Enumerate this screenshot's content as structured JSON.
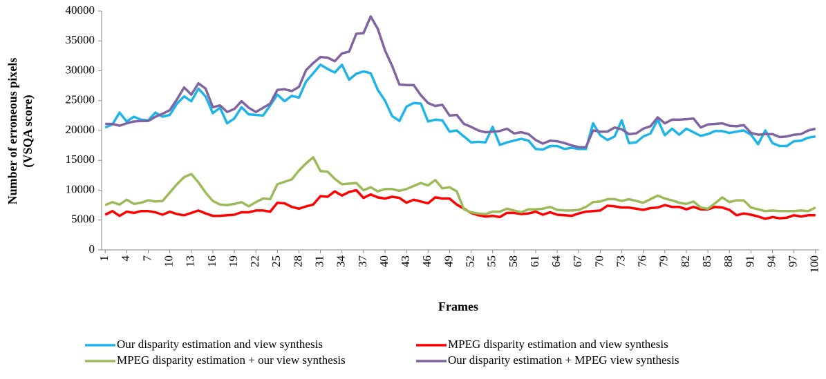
{
  "chart_data": {
    "type": "line",
    "xlabel": "Frames",
    "ylabel": [
      "Number of erroneous pixels",
      "(VSQA score)"
    ],
    "x": [
      1,
      2,
      3,
      4,
      5,
      6,
      7,
      8,
      9,
      10,
      11,
      12,
      13,
      14,
      15,
      16,
      17,
      18,
      19,
      20,
      21,
      22,
      23,
      24,
      25,
      26,
      27,
      28,
      29,
      30,
      31,
      32,
      33,
      34,
      35,
      36,
      37,
      38,
      39,
      40,
      41,
      42,
      43,
      44,
      45,
      46,
      47,
      48,
      49,
      50,
      51,
      52,
      53,
      54,
      55,
      56,
      57,
      58,
      59,
      60,
      61,
      62,
      63,
      64,
      65,
      66,
      67,
      68,
      69,
      70,
      71,
      72,
      73,
      74,
      75,
      76,
      77,
      78,
      79,
      80,
      81,
      82,
      83,
      84,
      85,
      86,
      87,
      88,
      89,
      90,
      91,
      92,
      93,
      94,
      95,
      96,
      97,
      98,
      99,
      100
    ],
    "xlim": [
      0.5,
      100.5
    ],
    "xticks": [
      1,
      4,
      7,
      10,
      13,
      16,
      19,
      22,
      25,
      28,
      31,
      34,
      37,
      40,
      43,
      46,
      49,
      52,
      55,
      58,
      61,
      64,
      67,
      70,
      73,
      76,
      79,
      82,
      85,
      88,
      91,
      94,
      97,
      100
    ],
    "ylim": [
      0,
      40000
    ],
    "yticks": [
      0,
      5000,
      10000,
      15000,
      20000,
      25000,
      30000,
      35000,
      40000
    ],
    "grid": false,
    "legend": "bottom",
    "series": [
      {
        "name": "Our disparity estimation and view synthesis",
        "color": "#1eb4e8",
        "values": [
          20500,
          21000,
          23000,
          21500,
          22300,
          21800,
          21700,
          23000,
          22300,
          22600,
          24500,
          25700,
          24900,
          27000,
          25700,
          22900,
          23800,
          21200,
          22000,
          23900,
          22700,
          22600,
          22500,
          24200,
          26000,
          24900,
          25800,
          25500,
          28200,
          29600,
          31000,
          30300,
          29700,
          31000,
          28500,
          29500,
          29900,
          29600,
          26800,
          25000,
          22400,
          21600,
          24000,
          24600,
          24500,
          21500,
          21800,
          21700,
          19800,
          20000,
          19000,
          18000,
          18100,
          18000,
          20600,
          17600,
          18000,
          18300,
          18600,
          18300,
          16900,
          16800,
          17400,
          17400,
          16900,
          17100,
          16900,
          16900,
          21200,
          19200,
          18400,
          19000,
          21700,
          17900,
          18000,
          19000,
          19500,
          21800,
          19200,
          20300,
          19300,
          20300,
          19700,
          19100,
          19400,
          19900,
          19900,
          19600,
          19800,
          20000,
          19300,
          17700,
          20000,
          17900,
          17400,
          17400,
          18200,
          18300,
          18800,
          19000
        ]
      },
      {
        "name": "MPEG disparity estimation and view synthesis",
        "color": "#ff0000",
        "values": [
          5900,
          6500,
          5700,
          6400,
          6200,
          6500,
          6500,
          6300,
          5900,
          6400,
          6000,
          5800,
          6200,
          6600,
          6100,
          5700,
          5700,
          5800,
          5900,
          6300,
          6300,
          6600,
          6600,
          6400,
          7900,
          7800,
          7200,
          6900,
          7300,
          7600,
          9000,
          8900,
          9800,
          9100,
          9700,
          10000,
          8700,
          9300,
          8800,
          8600,
          8900,
          8700,
          7900,
          8400,
          8100,
          7800,
          8800,
          8600,
          8600,
          7600,
          6900,
          6200,
          5800,
          5600,
          5700,
          5500,
          6200,
          6200,
          6000,
          6100,
          6400,
          5900,
          6300,
          5900,
          5800,
          5700,
          6100,
          6400,
          6500,
          6600,
          7400,
          7300,
          7100,
          7100,
          6900,
          6700,
          7000,
          7100,
          7500,
          7200,
          7200,
          6800,
          7200,
          6800,
          6800,
          7200,
          7100,
          6700,
          5800,
          6100,
          5900,
          5600,
          5200,
          5500,
          5300,
          5400,
          5800,
          5600,
          5800,
          5800
        ]
      },
      {
        "name": "MPEG disparity estimation + our view synthesis",
        "color": "#9bbb59",
        "values": [
          7500,
          8000,
          7600,
          8400,
          7700,
          7900,
          8300,
          8100,
          8200,
          9600,
          11000,
          12200,
          12700,
          11300,
          9600,
          8200,
          7600,
          7500,
          7700,
          8000,
          7300,
          8000,
          8600,
          8500,
          11000,
          11400,
          11800,
          13300,
          14500,
          15500,
          13200,
          13100,
          11900,
          11000,
          11100,
          11200,
          10000,
          10500,
          9800,
          10200,
          10200,
          9900,
          10200,
          10700,
          11200,
          10800,
          11700,
          10300,
          10500,
          9800,
          6800,
          6300,
          6100,
          6000,
          6400,
          6400,
          6900,
          6600,
          6300,
          6800,
          6800,
          6900,
          7200,
          6700,
          6600,
          6600,
          6700,
          7200,
          8000,
          8100,
          8500,
          8500,
          8200,
          8500,
          8200,
          7900,
          8500,
          9100,
          8600,
          8300,
          7900,
          7700,
          8100,
          7100,
          6900,
          7800,
          8800,
          8000,
          8300,
          8300,
          7100,
          6800,
          6500,
          6600,
          6500,
          6500,
          6500,
          6600,
          6500,
          7100
        ]
      },
      {
        "name": "Our disparity estimation + MPEG view synthesis",
        "color": "#8064a2",
        "values": [
          21100,
          21100,
          20800,
          21200,
          21500,
          21600,
          21600,
          22300,
          22800,
          23400,
          25200,
          27200,
          26000,
          27900,
          27000,
          23900,
          24200,
          23100,
          23600,
          24900,
          23800,
          23100,
          23800,
          24500,
          26800,
          26900,
          26600,
          27300,
          30100,
          31300,
          32300,
          32200,
          31600,
          32900,
          33200,
          36200,
          36300,
          39100,
          37000,
          33400,
          30800,
          27700,
          27600,
          27600,
          25900,
          24600,
          24100,
          24300,
          22500,
          22600,
          21100,
          20600,
          20000,
          19700,
          19800,
          19900,
          20300,
          19500,
          19700,
          19400,
          18400,
          17800,
          18300,
          18200,
          17900,
          17500,
          17200,
          17200,
          20000,
          19800,
          19800,
          20500,
          20200,
          19400,
          19500,
          20300,
          20700,
          22200,
          21200,
          21800,
          21800,
          21900,
          22000,
          20500,
          21000,
          21100,
          21200,
          20800,
          20700,
          20900,
          19600,
          19300,
          19400,
          19400,
          18900,
          19000,
          19300,
          19400,
          20000,
          20300
        ]
      }
    ]
  }
}
